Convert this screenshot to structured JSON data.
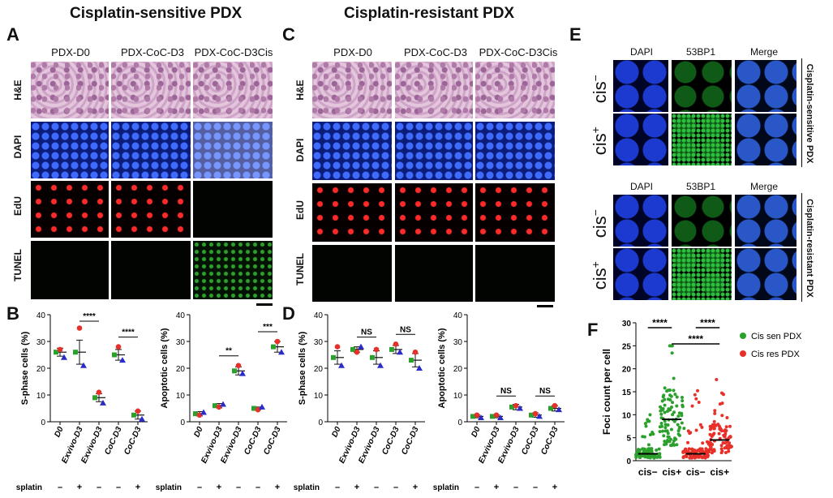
{
  "panels": {
    "A": {
      "label": "A",
      "title": "Cisplatin-sensitive PDX",
      "columns": [
        "PDX-D0",
        "PDX-CoC-D3",
        "PDX-CoC-D3Cis"
      ],
      "rows": [
        "H&E",
        "DAPI",
        "EdU",
        "TUNEL"
      ]
    },
    "C": {
      "label": "C",
      "title": "Cisplatin-resistant PDX",
      "columns": [
        "PDX-D0",
        "PDX-CoC-D3",
        "PDX-CoC-D3Cis"
      ],
      "rows": [
        "H&E",
        "DAPI",
        "EdU",
        "TUNEL"
      ]
    },
    "E": {
      "label": "E",
      "columns": [
        "DAPI",
        "53BP1",
        "Merge"
      ],
      "row_minus": "cis",
      "row_plus": "cis",
      "sup_minus": "−",
      "sup_plus": "+",
      "side_top": "Cisplatin-sensitive PDX",
      "side_bottom": "Cisplatin-resistant PDX"
    },
    "B": {
      "label": "B"
    },
    "D": {
      "label": "D"
    },
    "F": {
      "label": "F"
    }
  },
  "colors": {
    "green": "#2ca02c",
    "red": "#e8302a",
    "blue": "#2b2bc8",
    "mean": "#111111"
  },
  "chart_data": [
    {
      "id": "B1",
      "type": "scatter",
      "ylabel": "S-phase cells (%)",
      "ylim": [
        0,
        40
      ],
      "yticks": [
        0,
        10,
        20,
        30,
        40
      ],
      "categories": [
        "D0",
        "Exvivo-D3",
        "Exvivo-D3",
        "CoC-D3",
        "CoC-D3"
      ],
      "cisplatin_label": "Cisplatin",
      "cisplatin": [
        "–",
        "+",
        "–",
        "–",
        "+"
      ],
      "points": [
        [
          26,
          27,
          24
        ],
        [
          26,
          35,
          21
        ],
        [
          9,
          11,
          7
        ],
        [
          25,
          28,
          23
        ],
        [
          2.5,
          4,
          1
        ]
      ],
      "mean": [
        26,
        26,
        9,
        25,
        2.5
      ],
      "err": [
        1.5,
        4.5,
        1.5,
        2,
        1.5
      ],
      "sig": [
        {
          "from": 1,
          "to": 2,
          "text": "****"
        },
        {
          "from": 3,
          "to": 4,
          "text": "****"
        }
      ]
    },
    {
      "id": "B2",
      "type": "scatter",
      "ylabel": "Apoptotic cells (%)",
      "ylim": [
        0,
        40
      ],
      "yticks": [
        0,
        10,
        20,
        30,
        40
      ],
      "categories": [
        "D0",
        "Exvivo-D3",
        "Exvivo-D3",
        "CoC-D3",
        "CoC-D3"
      ],
      "cisplatin_label": "Cisplatin",
      "cisplatin": [
        "–",
        "+",
        "–",
        "–",
        "+"
      ],
      "points": [
        [
          3,
          2.5,
          3.5
        ],
        [
          6,
          5.5,
          6.5
        ],
        [
          19,
          21,
          18
        ],
        [
          5,
          4.5,
          5.5
        ],
        [
          28,
          30,
          26
        ]
      ],
      "mean": [
        3,
        6,
        19,
        5,
        28
      ],
      "err": [
        0.8,
        0.8,
        1.5,
        0.5,
        2
      ],
      "sig": [
        {
          "from": 1,
          "to": 2,
          "text": "**"
        },
        {
          "from": 3,
          "to": 4,
          "text": "***"
        }
      ]
    },
    {
      "id": "D1",
      "type": "scatter",
      "ylabel": "S-phase cells (%)",
      "ylim": [
        0,
        40
      ],
      "yticks": [
        0,
        10,
        20,
        30,
        40
      ],
      "categories": [
        "D0",
        "Exvivo-D3",
        "Exvivo-D3",
        "CoC-D3",
        "CoC-D3"
      ],
      "cisplatin_label": "Cisplatin",
      "cisplatin": [
        "–",
        "+",
        "–",
        "–",
        "+"
      ],
      "points": [
        [
          24,
          28,
          21
        ],
        [
          27,
          26,
          28
        ],
        [
          24,
          27,
          21
        ],
        [
          27,
          29,
          26
        ],
        [
          23,
          26,
          20
        ]
      ],
      "mean": [
        24,
        27,
        24,
        27,
        23
      ],
      "err": [
        2.5,
        1,
        2.5,
        1.5,
        2.5
      ],
      "sig": [
        {
          "from": 1,
          "to": 2,
          "text": "NS"
        },
        {
          "from": 3,
          "to": 4,
          "text": "NS"
        }
      ]
    },
    {
      "id": "D2",
      "type": "scatter",
      "ylabel": "Apoptotic cells (%)",
      "ylim": [
        0,
        40
      ],
      "yticks": [
        0,
        10,
        20,
        30,
        40
      ],
      "categories": [
        "D0",
        "Exvivo-D3",
        "Exvivo-D3",
        "CoC-D3",
        "CoC-D3"
      ],
      "cisplatin_label": "Cisplatin",
      "cisplatin": [
        "–",
        "+",
        "–",
        "–",
        "+"
      ],
      "points": [
        [
          2,
          2.5,
          1.5
        ],
        [
          2,
          2.5,
          1.5
        ],
        [
          5.5,
          6,
          5
        ],
        [
          2.5,
          3,
          2
        ],
        [
          5,
          6,
          4.5
        ]
      ],
      "mean": [
        2,
        2,
        5.5,
        2.5,
        5
      ],
      "err": [
        0.5,
        0.5,
        1,
        0.8,
        1
      ],
      "sig": [
        {
          "from": 1,
          "to": 2,
          "text": "NS"
        },
        {
          "from": 3,
          "to": 4,
          "text": "NS"
        }
      ]
    },
    {
      "id": "F",
      "type": "scatter",
      "ylabel": "Foci count per cell",
      "ylim": [
        0,
        30
      ],
      "yticks": [
        0,
        5,
        10,
        15,
        20,
        25,
        30
      ],
      "categories": [
        "cis−",
        "cis+",
        "cis−",
        "cis+"
      ],
      "series": [
        {
          "name": "Cis sen PDX",
          "color": "#2ca02c"
        },
        {
          "name": "Cis res PDX",
          "color": "#e8302a"
        }
      ],
      "groups": [
        {
          "series": 0,
          "mean": 1.5,
          "max": 10
        },
        {
          "series": 0,
          "mean": 9,
          "max": 25
        },
        {
          "series": 1,
          "mean": 1.5,
          "max": 16
        },
        {
          "series": 1,
          "mean": 4.5,
          "max": 19
        }
      ],
      "sig": [
        {
          "from": 0,
          "to": 1,
          "text": "****"
        },
        {
          "from": 2,
          "to": 3,
          "text": "****"
        },
        {
          "from": 1,
          "to": 3,
          "text": "****"
        }
      ]
    }
  ]
}
